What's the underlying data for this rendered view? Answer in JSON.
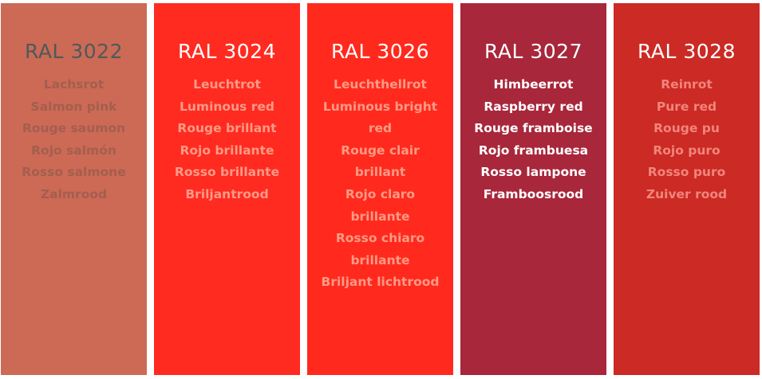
{
  "swatches": [
    {
      "code": "RAL 3022",
      "background": "#CC6A56",
      "code_color": "#4E5A5A",
      "name_color": "#A35E4E",
      "names": [
        "Lachsrot",
        "Salmon pink",
        "Rouge saumon",
        "Rojo salmón",
        "Rosso salmone",
        "Zalmrood"
      ]
    },
    {
      "code": "RAL 3024",
      "background": "#FF2B20",
      "code_color": "#FFFFFF",
      "name_color": "#FF9A86",
      "names": [
        "Leuchtrot",
        "Luminous red",
        "Rouge brillant",
        "Rojo brillante",
        "Rosso brillante",
        "Briljantrood"
      ]
    },
    {
      "code": "RAL 3026",
      "background": "#FF2A1D",
      "code_color": "#FFFFFF",
      "name_color": "#FF9A86",
      "names": [
        "Leuchthellrot",
        "Luminous bright red",
        "Rouge clair brillant",
        "Rojo claro brillante",
        "Rosso chiaro brillante",
        "Briljant lichtrood"
      ]
    },
    {
      "code": "RAL 3027",
      "background": "#A8273B",
      "code_color": "#FFFFFF",
      "name_color": "#FFFFFF",
      "names": [
        "Himbeerrot",
        "Raspberry red",
        "Rouge framboise",
        "Rojo frambuesa",
        "Rosso lampone",
        "Framboosrood"
      ]
    },
    {
      "code": "RAL 3028",
      "background": "#CC2A24",
      "code_color": "#FFFFFF",
      "name_color": "#F2857C",
      "names": [
        "Reinrot",
        "Pure red",
        "Rouge pu",
        "Rojo puro",
        "Rosso puro",
        "Zuiver rood"
      ]
    }
  ]
}
